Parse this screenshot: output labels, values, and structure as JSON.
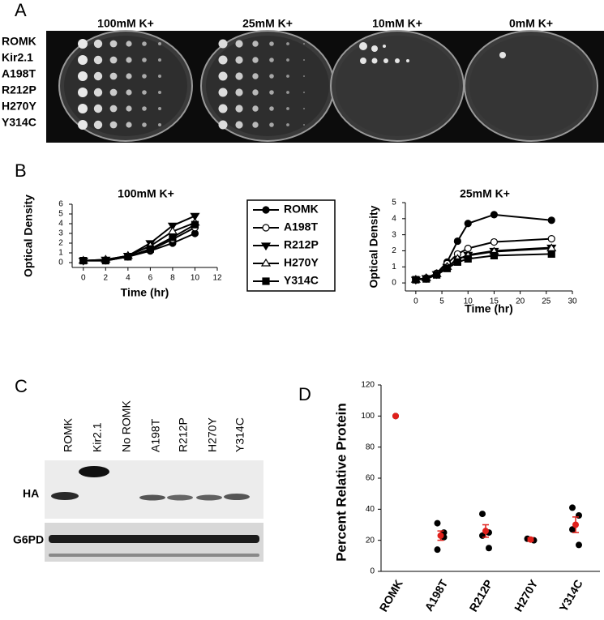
{
  "panel_labels": [
    "A",
    "B",
    "C",
    "D"
  ],
  "plates": {
    "conditions": [
      "100mM K+",
      "25mM K+",
      "10mM K+",
      "0mM K+"
    ],
    "strains": [
      "ROMK",
      "Kir2.1",
      "A198T",
      "R212P",
      "H270Y",
      "Y314C"
    ]
  },
  "blot": {
    "lanes": [
      "ROMK",
      "Kir2.1",
      "No ROMK",
      "A198T",
      "R212P",
      "H270Y",
      "Y314C"
    ],
    "bands": [
      "HA",
      "G6PD"
    ]
  },
  "chart_data": [
    {
      "type": "line",
      "title": "100mM K+",
      "x_label": "Time (hr)",
      "y_label": "Optical Density",
      "x": [
        0,
        2,
        4,
        6,
        8,
        10
      ],
      "xlim": [
        -1,
        12
      ],
      "xticks": [
        0,
        2,
        4,
        6,
        8,
        10,
        12
      ],
      "ylim": [
        -0.5,
        6
      ],
      "yticks": [
        0,
        1,
        2,
        3,
        4,
        5,
        6
      ],
      "series": [
        {
          "name": "ROMK",
          "color": "#000000",
          "marker": "circle-filled",
          "values": [
            0.2,
            0.2,
            0.6,
            1.2,
            2.0,
            3.0
          ]
        },
        {
          "name": "A198T",
          "color": "#000000",
          "marker": "circle-open",
          "values": [
            0.2,
            0.25,
            0.6,
            1.3,
            2.4,
            3.6
          ]
        },
        {
          "name": "R212P",
          "color": "#000000",
          "marker": "triangle-down-filled",
          "values": [
            0.2,
            0.3,
            0.7,
            2.0,
            3.8,
            4.8
          ]
        },
        {
          "name": "H270Y",
          "color": "#000000",
          "marker": "triangle-up-open",
          "values": [
            0.2,
            0.3,
            0.7,
            1.7,
            3.2,
            4.1
          ]
        },
        {
          "name": "Y314C",
          "color": "#000000",
          "marker": "square-filled",
          "values": [
            0.2,
            0.2,
            0.6,
            1.4,
            2.6,
            3.9
          ]
        }
      ]
    },
    {
      "type": "line",
      "title": "25mM K+",
      "x_label": "Time (hr)",
      "y_label": "Optical Density",
      "x": [
        0,
        2,
        4,
        6,
        8,
        10,
        15,
        26
      ],
      "xlim": [
        -2,
        30
      ],
      "xticks": [
        0,
        5,
        10,
        15,
        20,
        25,
        30
      ],
      "ylim": [
        -0.5,
        5
      ],
      "yticks": [
        0,
        1,
        2,
        3,
        4,
        5
      ],
      "series": [
        {
          "color": "#000000",
          "marker": "circle-filled",
          "values": [
            0.2,
            0.3,
            0.6,
            1.3,
            2.6,
            3.7,
            4.25,
            3.9
          ]
        },
        {
          "color": "#000000",
          "marker": "circle-open",
          "values": [
            0.2,
            0.3,
            0.6,
            1.2,
            1.8,
            2.15,
            2.55,
            2.75
          ]
        },
        {
          "color": "#000000",
          "marker": "triangle-down-filled",
          "values": [
            0.2,
            0.3,
            0.55,
            1.0,
            1.45,
            1.75,
            2.0,
            2.2
          ]
        },
        {
          "color": "#000000",
          "marker": "triangle-up-open",
          "values": [
            0.2,
            0.3,
            0.55,
            1.0,
            1.5,
            1.7,
            1.95,
            2.15
          ]
        },
        {
          "color": "#000000",
          "marker": "square-filled",
          "values": [
            0.2,
            0.25,
            0.5,
            0.9,
            1.3,
            1.5,
            1.7,
            1.8
          ]
        }
      ]
    },
    {
      "type": "dot",
      "y_label": "Percent Relative Protein",
      "categories": [
        "ROMK",
        "A198T",
        "R212P",
        "H270Y",
        "Y314C"
      ],
      "replicates": [
        [
          100
        ],
        [
          31,
          25,
          14,
          22
        ],
        [
          37,
          25,
          23,
          15
        ],
        [
          21,
          20
        ],
        [
          41,
          36,
          27,
          17
        ]
      ],
      "replicate_color": "#000000",
      "means": [
        100,
        23,
        26,
        20.5,
        30
      ],
      "errors": [
        0,
        3,
        4,
        1,
        5
      ],
      "mean_color": "#e0201b",
      "ylim": [
        0,
        120
      ],
      "yticks": [
        0,
        20,
        40,
        60,
        80,
        100,
        120
      ]
    }
  ]
}
